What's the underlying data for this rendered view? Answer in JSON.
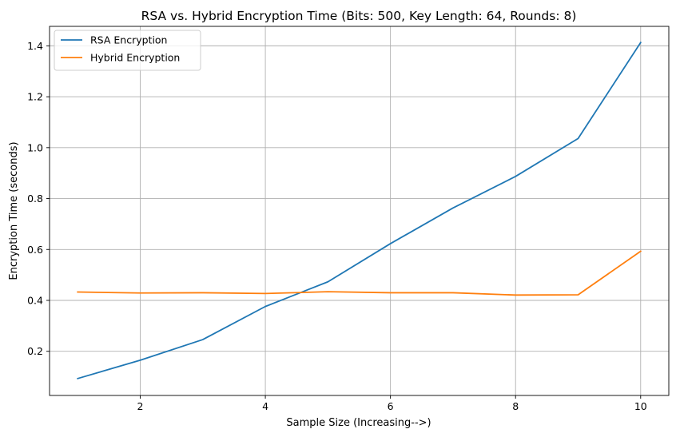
{
  "chart_data": {
    "type": "line",
    "title": "RSA vs. Hybrid Encryption Time (Bits: 500, Key Length: 64, Rounds: 8)",
    "xlabel": "Sample Size (Increasing-->)",
    "ylabel": "Encryption Time (seconds)",
    "x": [
      1,
      2,
      3,
      4,
      5,
      6,
      7,
      8,
      9,
      10
    ],
    "xlim": [
      0.55,
      10.45
    ],
    "ylim": [
      0.0265,
      1.4765
    ],
    "xticks": [
      2,
      4,
      6,
      8,
      10
    ],
    "yticks": [
      0.2,
      0.4,
      0.6,
      0.8,
      1.0,
      1.2,
      1.4
    ],
    "xtick_labels": [
      "2",
      "4",
      "6",
      "8",
      "10"
    ],
    "ytick_labels": [
      "0.2",
      "0.4",
      "0.6",
      "0.8",
      "1.0",
      "1.2",
      "1.4"
    ],
    "grid": true,
    "legend_position": "top-left",
    "series": [
      {
        "name": "RSA Encryption",
        "color": "#1f77b4",
        "values": [
          0.093,
          0.165,
          0.246,
          0.376,
          0.473,
          0.623,
          0.763,
          0.887,
          1.036,
          1.413
        ]
      },
      {
        "name": "Hybrid Encryption",
        "color": "#ff7f0e",
        "values": [
          0.433,
          0.429,
          0.43,
          0.427,
          0.434,
          0.43,
          0.43,
          0.421,
          0.422,
          0.593
        ]
      }
    ]
  }
}
